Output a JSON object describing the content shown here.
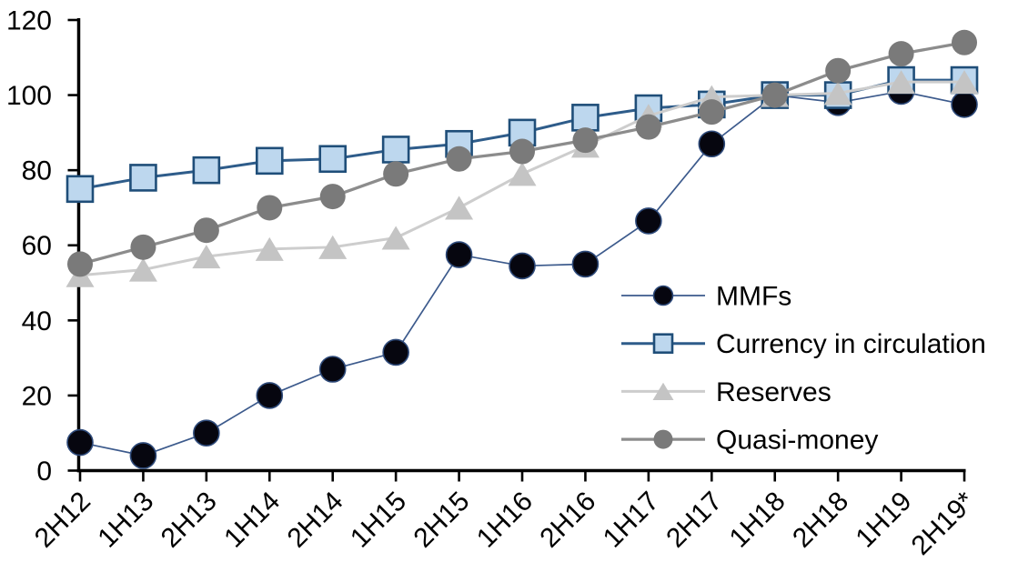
{
  "chart_data": {
    "type": "line",
    "title": "",
    "xlabel": "",
    "ylabel": "",
    "gridlines": false,
    "categories": [
      "2H12",
      "1H13",
      "2H13",
      "1H14",
      "2H14",
      "1H15",
      "2H15",
      "1H16",
      "2H16",
      "1H17",
      "2H17",
      "1H18",
      "2H18",
      "1H19",
      "2H19*"
    ],
    "series": [
      {
        "name": "MMFs",
        "marker": "circle",
        "line_color": "#3C5A8C",
        "line_width": 1.7,
        "marker_fill": "#06060F",
        "marker_stroke": "#2E4A7A",
        "marker_stroke_width": 1.6,
        "values": [
          7.5,
          4,
          10,
          20,
          27,
          31.5,
          57.5,
          54.5,
          55,
          66.5,
          87,
          100,
          98,
          101,
          97.5
        ]
      },
      {
        "name": "Currency in circulation",
        "marker": "square",
        "line_color": "#2E5C8A",
        "line_width": 3,
        "marker_fill": "#BDD7EE",
        "marker_stroke": "#1F4E79",
        "marker_stroke_width": 2.6,
        "values": [
          75,
          78,
          80,
          82.5,
          83,
          85.5,
          87,
          90,
          94,
          96.5,
          97.5,
          100,
          100,
          104,
          104
        ]
      },
      {
        "name": "Reserves",
        "marker": "triangle",
        "line_color": "#CDCDCD",
        "line_width": 3,
        "marker_fill": "#C4C4C4",
        "marker_stroke": "none",
        "marker_stroke_width": 0,
        "values": [
          52,
          53.5,
          57,
          59,
          59.5,
          62,
          70,
          79,
          86.5,
          94.5,
          99.5,
          100,
          100.5,
          103.5,
          103.5
        ]
      },
      {
        "name": "Quasi-money",
        "marker": "circle",
        "line_color": "#8C8C8C",
        "line_width": 3.3,
        "marker_fill": "#7A7A7A",
        "marker_stroke": "none",
        "marker_stroke_width": 0,
        "values": [
          55,
          59.5,
          64,
          70,
          73,
          79,
          83,
          85,
          88,
          91.5,
          95.5,
          100,
          106.5,
          111,
          114
        ]
      }
    ],
    "y_axis": {
      "min": 0,
      "max": 120,
      "tick_step": 20,
      "tick_labels": [
        "0",
        "20",
        "40",
        "60",
        "80",
        "100",
        "120"
      ]
    },
    "x_axis": {
      "label_rotation_deg": -45
    },
    "legend": {
      "position": "inside-right",
      "items": [
        "MMFs",
        "Currency in circulation",
        "Reserves",
        "Quasi-money"
      ]
    },
    "axis_color": "#000000",
    "background_color": "#FFFFFF"
  }
}
